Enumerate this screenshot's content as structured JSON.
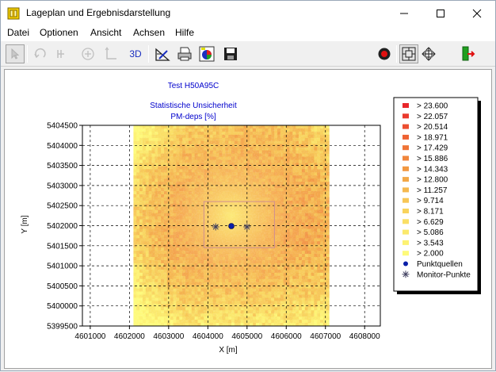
{
  "window": {
    "title": "Lageplan und Ergebnisdarstellung",
    "controls": {
      "minimize": "minimize",
      "maximize": "maximize",
      "close": "close"
    }
  },
  "menu": [
    "Datei",
    "Optionen",
    "Ansicht",
    "Achsen",
    "Hilfe"
  ],
  "toolbar": {
    "icons": [
      "select-arrow-icon",
      "rotate-icon",
      "rotate-alt-icon",
      "add-circle-icon",
      "axes-corner-icon",
      "3d-toggle",
      "draw-tool-icon",
      "print-icon",
      "color-palette-icon",
      "save-icon",
      "record-icon",
      "zoom-fit-icon",
      "pan-icon",
      "exit-icon"
    ],
    "three_d_label": "3D"
  },
  "colors": {
    "title_blue": "#0000cc",
    "legend_scale": [
      "#e8262a",
      "#ea3a2d",
      "#ec4e30",
      "#ee6233",
      "#ef7437",
      "#f0863c",
      "#f29842",
      "#f3a848",
      "#f5b84f",
      "#f7c656",
      "#f8d35d",
      "#fadf65",
      "#fbe96c",
      "#fdf273",
      "#fefa7a"
    ],
    "source_color": "#0a1fa8"
  },
  "chart_data": {
    "type": "heatmap",
    "title": "Test H50A95C",
    "subtitle": [
      "Statistische Unsicherheit",
      "PM-deps [%]"
    ],
    "xlabel": "X [m]",
    "ylabel": "Y [m]",
    "xlim": [
      4600800,
      4608400
    ],
    "ylim": [
      5399500,
      5404500
    ],
    "x_ticks": [
      "4601000",
      "4602000",
      "4603000",
      "4604000",
      "4605000",
      "4606000",
      "4607000",
      "4608000"
    ],
    "x_tick_values": [
      4601000,
      4602000,
      4603000,
      4604000,
      4605000,
      4606000,
      4607000,
      4608000
    ],
    "y_ticks": [
      "5404500",
      "5404000",
      "5403500",
      "5403000",
      "5402500",
      "5402000",
      "5401500",
      "5401000",
      "5400500",
      "5400000",
      "5399500"
    ],
    "y_tick_values": [
      5404500,
      5404000,
      5403500,
      5403000,
      5402500,
      5402000,
      5401500,
      5401000,
      5400500,
      5400000,
      5399500
    ],
    "grid": true,
    "raster_extent": {
      "x": [
        4602100,
        4607100
      ],
      "y": [
        5399500,
        5404500
      ]
    },
    "inner_box": {
      "x": [
        4603900,
        4605700
      ],
      "y": [
        5401450,
        5402600
      ]
    },
    "point_sources": [
      {
        "x": 4604600,
        "y": 5401990
      }
    ],
    "monitor_points": [
      {
        "x": 4604200,
        "y": 5401970
      },
      {
        "x": 4605000,
        "y": 5401970
      }
    ],
    "legend_placement": "right",
    "legend": {
      "levels": [
        "> 23.600",
        "> 22.057",
        "> 20.514",
        "> 18.971",
        "> 17.429",
        "> 15.886",
        "> 14.343",
        "> 12.800",
        "> 11.257",
        "> 9.714",
        "> 8.171",
        "> 6.629",
        "> 5.086",
        "> 3.543",
        "> 2.000"
      ],
      "point_sources_label": "Punktquellen",
      "monitor_points_label": "Monitor-Punkte"
    }
  }
}
